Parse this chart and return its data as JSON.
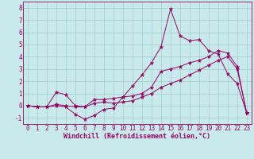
{
  "xlabel": "Windchill (Refroidissement éolien,°C)",
  "background_color": "#c8eaea",
  "line_color": "#990066",
  "grid_color": "#a0cccc",
  "x_ticks": [
    0,
    1,
    2,
    3,
    4,
    5,
    6,
    7,
    8,
    9,
    10,
    11,
    12,
    13,
    14,
    15,
    16,
    17,
    18,
    19,
    20,
    21,
    22,
    23
  ],
  "y_ticks": [
    -1,
    0,
    1,
    2,
    3,
    4,
    5,
    6,
    7,
    8
  ],
  "xlim": [
    -0.5,
    23.5
  ],
  "ylim": [
    -1.5,
    8.5
  ],
  "line1_y": [
    0.0,
    -0.1,
    -0.1,
    0.0,
    -0.1,
    -0.7,
    -1.1,
    -0.8,
    -0.3,
    -0.2,
    0.7,
    1.6,
    2.5,
    3.5,
    4.8,
    7.9,
    5.7,
    5.3,
    5.4,
    4.5,
    4.2,
    2.6,
    1.8,
    -0.6
  ],
  "line2_y": [
    0.0,
    -0.1,
    -0.1,
    1.1,
    0.9,
    0.0,
    -0.1,
    0.5,
    0.5,
    0.6,
    0.7,
    0.8,
    1.0,
    1.5,
    2.8,
    3.0,
    3.2,
    3.5,
    3.7,
    4.0,
    4.5,
    4.3,
    3.2,
    -0.6
  ],
  "line3_y": [
    0.0,
    -0.1,
    -0.1,
    0.1,
    0.0,
    -0.1,
    -0.1,
    0.2,
    0.3,
    0.2,
    0.3,
    0.4,
    0.7,
    1.0,
    1.5,
    1.8,
    2.1,
    2.5,
    2.9,
    3.3,
    3.7,
    4.0,
    3.0,
    -0.6
  ],
  "tick_fontsize": 5.5,
  "label_fontsize": 6.0,
  "marker": "*",
  "marker_size": 3.5,
  "linewidth": 0.7
}
